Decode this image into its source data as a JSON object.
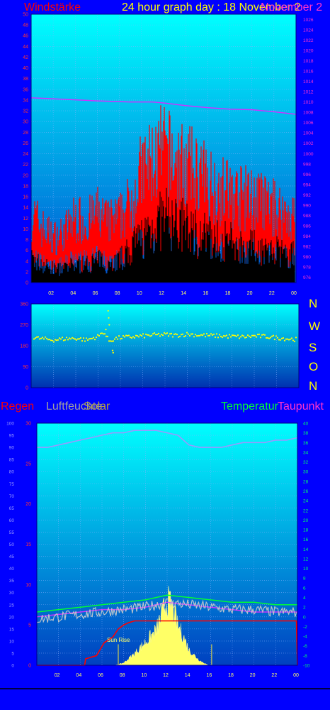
{
  "header": {
    "wind_title": "Windstärke",
    "graph_title": "24 hour graph day : 18 November 2",
    "overlap_title": "November 2"
  },
  "direction_labels": [
    "N",
    "W",
    "S",
    "O",
    "N"
  ],
  "legend": {
    "rain": "Regen",
    "humidity": "Luftfeuchte",
    "solar": "Solar",
    "temperature": "Temperatur",
    "dewpoint": "Taupunkt"
  },
  "annotations": {
    "sunrise": "Sun Rise"
  },
  "colors": {
    "bg": "#0000ff",
    "wind_gust": "#ff0000",
    "wind_avg": "#000000",
    "pressure": "#cc33ff",
    "direction": "#ffff00",
    "rain": "#ff0000",
    "humidity": "#9999ff",
    "solar": "#ffff66",
    "temperature": "#00ff33",
    "dewpoint": "#cc33ff",
    "temp_noise": "#cccccc"
  },
  "chart_data": [
    {
      "type": "area",
      "x_ticks": [
        "02",
        "04",
        "06",
        "08",
        "10",
        "12",
        "14",
        "16",
        "18",
        "20",
        "22",
        "00"
      ],
      "x_range": [
        0,
        24
      ],
      "y_left_range": [
        0,
        50
      ],
      "y_left_ticks": [
        0,
        2,
        4,
        6,
        8,
        10,
        12,
        14,
        16,
        18,
        20,
        22,
        24,
        26,
        28,
        30,
        32,
        34,
        36,
        38,
        40,
        42,
        44,
        46,
        48,
        50
      ],
      "y_right_range": [
        975,
        1027
      ],
      "y_right_ticks": [
        976,
        978,
        980,
        982,
        984,
        986,
        988,
        990,
        992,
        994,
        996,
        998,
        1000,
        1002,
        1004,
        1006,
        1008,
        1010,
        1012,
        1014,
        1016,
        1018,
        1020,
        1022,
        1024,
        1026
      ],
      "grid": true,
      "series": [
        {
          "name": "Windstärke",
          "values_hour": [
            0,
            1,
            2,
            3,
            4,
            5,
            6,
            7,
            8,
            9,
            10,
            11,
            12,
            13,
            14,
            15,
            16,
            17,
            18,
            19,
            20,
            21,
            22,
            23,
            24
          ],
          "gust": [
            14,
            11,
            9,
            10,
            13,
            12,
            14,
            12,
            13,
            16,
            22,
            24,
            26,
            24,
            23,
            22,
            20,
            19,
            18,
            17,
            17,
            16,
            15,
            14,
            13
          ],
          "avg": [
            5,
            4,
            3,
            3,
            4,
            4,
            5,
            4,
            5,
            7,
            10,
            12,
            14,
            13,
            12,
            11,
            10,
            9,
            9,
            8,
            8,
            7,
            7,
            6,
            6
          ]
        },
        {
          "name": "pressure",
          "hours": [
            0,
            3,
            6,
            9,
            11,
            12,
            14,
            16,
            18,
            20,
            22,
            24
          ],
          "values": [
            1010.8,
            1010.5,
            1010.2,
            1010.0,
            1010.0,
            1009.8,
            1009.3,
            1008.9,
            1008.6,
            1008.5,
            1008.1,
            1007.6
          ]
        }
      ]
    },
    {
      "type": "scatter",
      "x_ticks": [
        "02",
        "04",
        "06",
        "08",
        "10",
        "12",
        "14",
        "16",
        "18",
        "20",
        "22",
        "00"
      ],
      "x_range": [
        0,
        24
      ],
      "y_range": [
        0,
        360
      ],
      "y_ticks": [
        0,
        90,
        180,
        270,
        360
      ],
      "grid": true,
      "series": [
        {
          "name": "direction",
          "hours": [
            0,
            1,
            2,
            3,
            4,
            5,
            6,
            6.5,
            7,
            7.5,
            8,
            9,
            10,
            11,
            12,
            13,
            14,
            15,
            16,
            17,
            18,
            19,
            20,
            21,
            22,
            23,
            24
          ],
          "values": [
            215,
            210,
            205,
            210,
            212,
            205,
            220,
            240,
            200,
            210,
            215,
            218,
            222,
            226,
            228,
            225,
            230,
            226,
            224,
            222,
            220,
            218,
            222,
            220,
            215,
            210,
            206
          ]
        }
      ]
    },
    {
      "type": "line",
      "x_ticks": [
        "02",
        "04",
        "06",
        "08",
        "10",
        "12",
        "14",
        "16",
        "18",
        "20",
        "22",
        "00"
      ],
      "x_range": [
        0,
        24
      ],
      "y_hum_range": [
        0,
        100
      ],
      "y_hum_ticks": [
        0,
        5,
        10,
        15,
        20,
        25,
        30,
        35,
        40,
        45,
        50,
        55,
        60,
        65,
        70,
        75,
        80,
        85,
        90,
        95,
        100
      ],
      "y_rain_range": [
        0,
        30
      ],
      "y_rain_ticks": [
        0,
        5,
        10,
        15,
        20,
        25,
        30
      ],
      "y_temp_range": [
        -10,
        40
      ],
      "y_temp_ticks": [
        -10,
        -8,
        -6,
        -4,
        -2,
        0,
        2,
        4,
        6,
        8,
        10,
        12,
        14,
        16,
        18,
        20,
        22,
        24,
        26,
        28,
        30,
        32,
        34,
        36,
        38,
        40
      ],
      "grid": true,
      "series": [
        {
          "name": "Luftfeuchte",
          "hours": [
            0,
            1,
            2,
            3,
            4,
            5,
            6,
            7,
            8,
            9,
            10,
            11,
            12,
            13,
            14,
            15,
            16,
            17,
            18,
            19,
            20,
            21,
            22,
            23,
            24
          ],
          "values": [
            90,
            90,
            91,
            92,
            93,
            94,
            95,
            96,
            96,
            97,
            97,
            97,
            96,
            95,
            91,
            90,
            90,
            90,
            91,
            92,
            92,
            92,
            93,
            93,
            94
          ]
        },
        {
          "name": "Regen",
          "hours": [
            0,
            4.4,
            4.5,
            5.5,
            6.2,
            7,
            7.5,
            8,
            8.5,
            9,
            10,
            12,
            14,
            16,
            18,
            20,
            22,
            23.9,
            24
          ],
          "values": [
            0,
            0,
            0.8,
            1.2,
            2.8,
            3.5,
            4.5,
            5.0,
            5.3,
            5.5,
            5.5,
            5.5,
            5.5,
            5.5,
            5.5,
            5.5,
            5.5,
            5.5,
            0
          ]
        },
        {
          "name": "Temperatur",
          "hours": [
            0,
            2,
            4,
            6,
            8,
            10,
            12,
            14,
            16,
            18,
            20,
            22,
            24
          ],
          "values": [
            1.0,
            1.5,
            2.0,
            2.5,
            3.0,
            3.5,
            4.5,
            4.0,
            3.5,
            3.0,
            3.0,
            2.5,
            2.5
          ]
        },
        {
          "name": "Taupunkt",
          "hours": [
            0,
            2,
            4,
            6,
            8,
            10,
            12,
            14,
            16,
            18,
            20,
            22,
            24
          ],
          "values": [
            0.0,
            0.5,
            1.0,
            1.5,
            1.5,
            2.0,
            3.0,
            2.5,
            2.0,
            1.5,
            1.0,
            1.0,
            1.0
          ]
        },
        {
          "name": "Solar",
          "hours": [
            7.2,
            8,
            9,
            10,
            11,
            11.5,
            12,
            12.5,
            13,
            13.5,
            14,
            15,
            15.8
          ],
          "values": [
            0,
            0.3,
            1.5,
            3.0,
            4.5,
            6.5,
            8.5,
            7.5,
            5.0,
            3.8,
            2.0,
            0.6,
            0
          ]
        }
      ]
    }
  ]
}
